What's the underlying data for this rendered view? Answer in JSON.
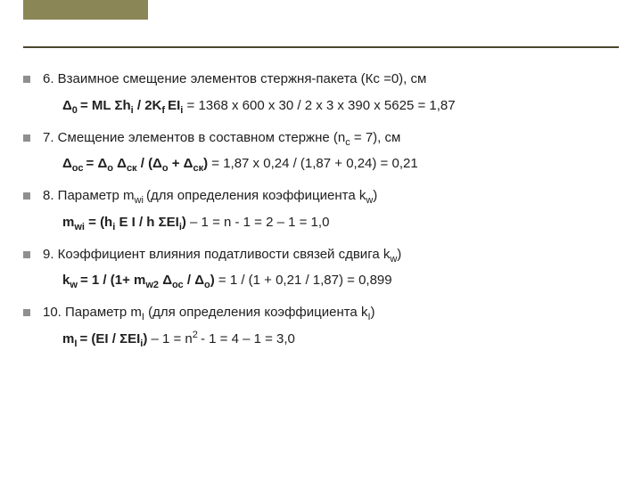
{
  "accent_color": "#8b8656",
  "rule_color": "#4a472e",
  "bullet_color": "#8f8f8f",
  "items": [
    {
      "lead": "6. Взаимное смещение элементов стержня-пакета (Кс =0), см",
      "formula_bold": "Δ<sub>0 </sub>= ML Σh<sub>i</sub> / 2K<sub>f </sub>EI<sub>i</sub>",
      "formula_rest": " = 1368 х 600 х 30 / 2 х 3 х 390 х 5625 = 1,87"
    },
    {
      "lead": "7. Смещение элементов в составном стержне (n<sub>c</sub> = 7), см",
      "formula_bold": "Δ<sub>ос </sub>= Δ<sub>о</sub> Δ<sub>ск</sub>  / (Δ<sub>о</sub> + Δ<sub>ск</sub>) ",
      "formula_rest": "= 1,87 х 0,24 / (1,87 + 0,24) = 0,21"
    },
    {
      "lead": "8. Параметр m<sub>wi </sub>(для определения коэффициента k<sub>w</sub>)",
      "formula_bold": " m<sub>wi</sub> = (h<sub>i</sub> E I / h ΣEI<sub>i</sub>) ",
      "formula_rest": "– 1 =  n - 1 = 2 – 1 = 1,0"
    },
    {
      "lead": "9. Коэффициент влияния податливости связей сдвига k<sub>w</sub>)",
      "formula_bold": " k<sub>w </sub>= 1 / (1+ m<sub>w2</sub> Δ<sub>ос</sub> / Δ<sub>о</sub>)",
      "formula_rest": " = 1 / (1 + 0,21 / 1,87) = 0,899"
    },
    {
      "lead": "10. Параметр m<sub>I</sub> (для определения коэффициента k<sub>I</sub>)",
      "formula_bold": " m<sub>I </sub>= (EI / ΣEI<sub>i</sub>) ",
      "formula_rest": "– 1 = n<sup>2 </sup>- 1 = 4 – 1 = 3,0"
    }
  ]
}
